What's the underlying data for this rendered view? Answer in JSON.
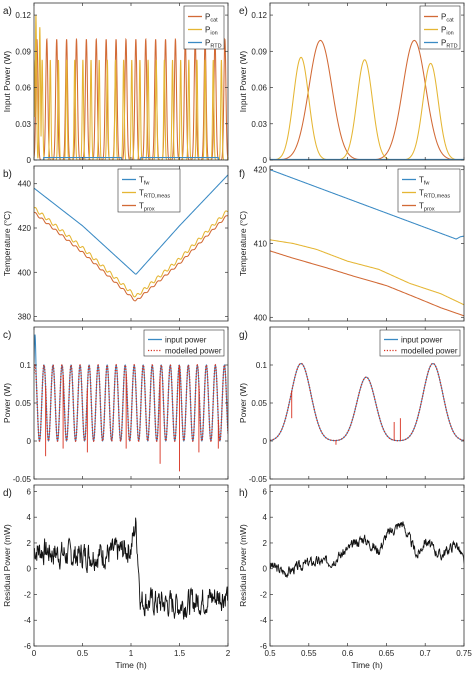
{
  "colors": {
    "blue": "#3a8ac4",
    "orange": "#d26a36",
    "yellow": "#e5b634",
    "black": "#111111",
    "red_dot": "#d7301f"
  },
  "chart_data": [
    {
      "id": "a",
      "type": "line",
      "panel_label": "a)",
      "ylabel": "Input Power (W)",
      "xlabel": "",
      "xlim": [
        0,
        2
      ],
      "ylim": [
        0,
        0.13
      ],
      "yticks": [
        0,
        0.03,
        0.06,
        0.09,
        0.12
      ],
      "ytick_labels": [
        "0",
        "0.03",
        "0.06",
        "0.09",
        "0.12"
      ],
      "xticks": [
        0,
        0.5,
        1,
        1.5,
        2
      ],
      "xtick_labels": [],
      "legend": {
        "placement": "top-right",
        "entries": [
          {
            "main": "P",
            "sub": "cat",
            "color": "#d26a36"
          },
          {
            "main": "P",
            "sub": "ion",
            "color": "#e5b634"
          },
          {
            "main": "P",
            "sub": "RTD",
            "color": "#3a8ac4"
          }
        ]
      },
      "series": [
        {
          "name": "P_cat",
          "color": "#d26a36",
          "kind": "pulse",
          "period": 0.102,
          "phase": 0.03,
          "amplitude": 0.1,
          "width": 0.015,
          "x_range": [
            0,
            2
          ]
        },
        {
          "name": "P_ion",
          "color": "#e5b634",
          "kind": "pulse",
          "period": 0.084,
          "phase": 0.0,
          "amplitude": 0.083,
          "width": 0.0095,
          "x_range": [
            0,
            2
          ],
          "peaks": [
            [
              0.02,
              0.12
            ],
            [
              0.06,
              0.11
            ]
          ]
        },
        {
          "name": "P_RTD",
          "color": "#3a8ac4",
          "kind": "points",
          "x": [
            0,
            0.1,
            0.1,
            0.9,
            0.9,
            1.1,
            1.1,
            1.9,
            1.9,
            2
          ],
          "y": [
            0,
            0,
            0.002,
            0.002,
            0,
            0,
            0.002,
            0.002,
            0,
            0
          ]
        }
      ]
    },
    {
      "id": "b",
      "type": "line",
      "panel_label": "b)",
      "ylabel": "Temperature (°C)",
      "xlabel": "",
      "xlim": [
        0,
        2
      ],
      "ylim": [
        378,
        448
      ],
      "yticks": [
        380,
        400,
        420,
        440
      ],
      "ytick_labels": [
        "380",
        "400",
        "420",
        "440"
      ],
      "xticks": [
        0,
        0.5,
        1,
        1.5,
        2
      ],
      "xtick_labels": [],
      "legend": {
        "placement": "top-center",
        "entries": [
          {
            "main": "T",
            "sub": "fw",
            "color": "#3a8ac4"
          },
          {
            "main": "T",
            "sub": "RTD,meas",
            "color": "#e5b634"
          },
          {
            "main": "T",
            "sub": "prox",
            "color": "#d26a36"
          }
        ]
      },
      "series": [
        {
          "name": "T_fw",
          "color": "#3a8ac4",
          "kind": "points",
          "x": [
            0,
            0.5,
            1.0,
            1.05,
            1.5,
            2.0
          ],
          "y": [
            438,
            421,
            401,
            399,
            421,
            444
          ]
        },
        {
          "name": "T_RTD,meas",
          "color": "#e5b634",
          "kind": "points",
          "x": [
            0,
            0.5,
            1.0,
            1.05,
            1.5,
            2.0
          ],
          "y": [
            429,
            411,
            391,
            389,
            406,
            428
          ],
          "ripple": 0.8
        },
        {
          "name": "T_prox",
          "color": "#d26a36",
          "kind": "points",
          "x": [
            0,
            0.5,
            1.0,
            1.05,
            1.5,
            2.0
          ],
          "y": [
            427,
            409,
            389,
            387,
            404,
            426
          ],
          "ripple": 0.5
        }
      ]
    },
    {
      "id": "c",
      "type": "line",
      "panel_label": "c)",
      "ylabel": "Power (W)",
      "xlabel": "",
      "xlim": [
        0,
        2
      ],
      "ylim": [
        -0.05,
        0.15
      ],
      "yticks": [
        -0.05,
        0,
        0.05,
        0.1
      ],
      "ytick_labels": [
        "-0.05",
        "0",
        "0.05",
        "0.1"
      ],
      "xticks": [
        0,
        0.5,
        1,
        1.5,
        2
      ],
      "xtick_labels": [],
      "legend": {
        "placement": "top-right",
        "entries": [
          {
            "main": "input power",
            "sub": "",
            "color": "#3a8ac4",
            "style": "solid"
          },
          {
            "main": "modelled power",
            "sub": "",
            "color": "#d7301f",
            "style": "dotted"
          }
        ]
      },
      "series": [
        {
          "name": "input power",
          "color": "#3a8ac4",
          "kind": "sine",
          "period": 0.093,
          "phase": 0.01,
          "center": 0.05,
          "amplitude": 0.05,
          "x_range": [
            0,
            2
          ],
          "first_peak": 0.14
        },
        {
          "name": "modelled power",
          "color": "#d7301f",
          "kind": "sine",
          "period": 0.093,
          "phase": 0.01,
          "center": 0.05,
          "amplitude": 0.05,
          "x_range": [
            0,
            2
          ],
          "dotted": true,
          "spikes": [
            [
              0.12,
              -0.02
            ],
            [
              0.3,
              -0.01
            ],
            [
              0.55,
              -0.015
            ],
            [
              0.95,
              -0.01
            ],
            [
              1.3,
              -0.03
            ],
            [
              1.5,
              -0.04
            ],
            [
              1.7,
              -0.015
            ],
            [
              1.9,
              -0.01
            ]
          ]
        }
      ]
    },
    {
      "id": "d",
      "type": "line",
      "panel_label": "d)",
      "ylabel": "Residual Power (mW)",
      "xlabel": "Time (h)",
      "xlim": [
        0,
        2
      ],
      "ylim": [
        -6,
        6.5
      ],
      "yticks": [
        -6,
        -4,
        -2,
        0,
        2,
        4,
        6
      ],
      "ytick_labels": [
        "-6",
        "-4",
        "-2",
        "0",
        "2",
        "4",
        "6"
      ],
      "xticks": [
        0,
        0.5,
        1,
        1.5,
        2
      ],
      "xtick_labels": [
        "0",
        "0.5",
        "1",
        "1.5",
        "2"
      ],
      "series": [
        {
          "name": "residual",
          "color": "#111111",
          "kind": "noise",
          "seed": 7,
          "noise": 0.9,
          "x": [
            0,
            0.4,
            0.8,
            1.0,
            1.05,
            1.1,
            1.5,
            2.0
          ],
          "y": [
            1.5,
            1.0,
            1.2,
            1.6,
            3.5,
            -2.5,
            -2.8,
            -2.0
          ]
        }
      ]
    },
    {
      "id": "e",
      "type": "line",
      "panel_label": "e)",
      "ylabel": "Input Power (W)",
      "xlabel": "",
      "xlim": [
        0.5,
        0.75
      ],
      "ylim": [
        0,
        0.13
      ],
      "yticks": [
        0,
        0.03,
        0.06,
        0.09,
        0.12
      ],
      "ytick_labels": [
        "0",
        "0.03",
        "0.06",
        "0.09",
        "0.12"
      ],
      "xticks": [
        0.5,
        0.55,
        0.6,
        0.65,
        0.7,
        0.75
      ],
      "xtick_labels": [],
      "legend": {
        "placement": "top-right",
        "entries": [
          {
            "main": "P",
            "sub": "cat",
            "color": "#d26a36"
          },
          {
            "main": "P",
            "sub": "ion",
            "color": "#e5b634"
          },
          {
            "main": "P",
            "sub": "RTD",
            "color": "#3a8ac4"
          }
        ]
      },
      "series": [
        {
          "name": "P_cat",
          "color": "#d26a36",
          "kind": "bumps",
          "bumps": [
            [
              0.565,
              0.099,
              0.021
            ],
            [
              0.686,
              0.099,
              0.021
            ]
          ]
        },
        {
          "name": "P_ion",
          "color": "#e5b634",
          "kind": "bumps",
          "bumps": [
            [
              0.54,
              0.085,
              0.014
            ],
            [
              0.622,
              0.083,
              0.014
            ],
            [
              0.707,
              0.08,
              0.014
            ]
          ]
        },
        {
          "name": "P_RTD",
          "color": "#3a8ac4",
          "kind": "points",
          "x": [
            0.5,
            0.75
          ],
          "y": [
            0.0005,
            0.0005
          ]
        }
      ]
    },
    {
      "id": "f",
      "type": "line",
      "panel_label": "f)",
      "ylabel": "Temperature (°C)",
      "xlabel": "",
      "xlim": [
        0.5,
        0.75
      ],
      "ylim": [
        399.5,
        420.5
      ],
      "yticks": [
        400,
        410,
        420
      ],
      "ytick_labels": [
        "400",
        "410",
        "420"
      ],
      "xticks": [
        0.5,
        0.55,
        0.6,
        0.65,
        0.7,
        0.75
      ],
      "xtick_labels": [],
      "legend": {
        "placement": "top-right",
        "entries": [
          {
            "main": "T",
            "sub": "fw",
            "color": "#3a8ac4"
          },
          {
            "main": "T",
            "sub": "RTD,meas",
            "color": "#e5b634"
          },
          {
            "main": "T",
            "sub": "prox",
            "color": "#d26a36"
          }
        ]
      },
      "series": [
        {
          "name": "T_fw",
          "color": "#3a8ac4",
          "kind": "points",
          "x": [
            0.5,
            0.74,
            0.745,
            0.75
          ],
          "y": [
            420,
            410.6,
            410.9,
            411
          ]
        },
        {
          "name": "T_RTD,meas",
          "color": "#e5b634",
          "kind": "points",
          "x": [
            0.5,
            0.53,
            0.56,
            0.6,
            0.64,
            0.68,
            0.72,
            0.75
          ],
          "y": [
            410.5,
            410,
            409.2,
            407.6,
            406.5,
            404.6,
            403.2,
            401.7
          ]
        },
        {
          "name": "T_prox",
          "color": "#d26a36",
          "kind": "points",
          "x": [
            0.5,
            0.53,
            0.57,
            0.61,
            0.65,
            0.69,
            0.72,
            0.75
          ],
          "y": [
            409,
            408,
            406.8,
            405.5,
            404.3,
            402.6,
            401.3,
            400.2
          ]
        }
      ]
    },
    {
      "id": "g",
      "type": "line",
      "panel_label": "g)",
      "ylabel": "Power (W)",
      "xlabel": "",
      "xlim": [
        0.5,
        0.75
      ],
      "ylim": [
        -0.05,
        0.15
      ],
      "yticks": [
        -0.05,
        0,
        0.05,
        0.1
      ],
      "ytick_labels": [
        "-0.05",
        "0",
        "0.05",
        "0.1"
      ],
      "xticks": [
        0.5,
        0.55,
        0.6,
        0.65,
        0.7,
        0.75
      ],
      "xtick_labels": [],
      "legend": {
        "placement": "top-right",
        "entries": [
          {
            "main": "input power",
            "sub": "",
            "color": "#3a8ac4",
            "style": "solid"
          },
          {
            "main": "modelled power",
            "sub": "",
            "color": "#d7301f",
            "style": "dotted"
          }
        ]
      },
      "series": [
        {
          "name": "input power",
          "color": "#3a8ac4",
          "kind": "bumps",
          "base": 0.0,
          "bumps": [
            [
              0.54,
              0.102,
              0.018
            ],
            [
              0.624,
              0.084,
              0.017
            ],
            [
              0.71,
              0.102,
              0.018
            ]
          ]
        },
        {
          "name": "modelled power",
          "color": "#d7301f",
          "kind": "bumps",
          "base": 0.0,
          "dotted": true,
          "bumps": [
            [
              0.54,
              0.102,
              0.018
            ],
            [
              0.624,
              0.084,
              0.017
            ],
            [
              0.71,
              0.102,
              0.018
            ]
          ],
          "spikes": [
            [
              0.528,
              0.03
            ],
            [
              0.585,
              -0.005
            ],
            [
              0.66,
              0.025
            ],
            [
              0.668,
              0.03
            ]
          ]
        }
      ]
    },
    {
      "id": "h",
      "type": "line",
      "panel_label": "h)",
      "ylabel": "Residual Power (mW)",
      "xlabel": "Time (h)",
      "xlim": [
        0.5,
        0.75
      ],
      "ylim": [
        -6,
        6.5
      ],
      "yticks": [
        -6,
        -4,
        -2,
        0,
        2,
        4,
        6
      ],
      "ytick_labels": [
        "-6",
        "-4",
        "-2",
        "0",
        "2",
        "4",
        "6"
      ],
      "xticks": [
        0.5,
        0.55,
        0.6,
        0.65,
        0.7,
        0.75
      ],
      "xtick_labels": [
        "0.5",
        "0.55",
        "0.6",
        "0.65",
        "0.7",
        "0.75"
      ],
      "series": [
        {
          "name": "residual",
          "color": "#111111",
          "kind": "noise",
          "seed": 3,
          "noise": 0.35,
          "x": [
            0.5,
            0.52,
            0.55,
            0.58,
            0.6,
            0.62,
            0.64,
            0.65,
            0.67,
            0.69,
            0.7,
            0.72,
            0.74,
            0.75
          ],
          "y": [
            0.3,
            -0.3,
            0.5,
            0.6,
            1.5,
            2.4,
            1.4,
            2.6,
            3.6,
            1.0,
            2.2,
            1.0,
            2.0,
            0.5
          ]
        }
      ]
    }
  ]
}
